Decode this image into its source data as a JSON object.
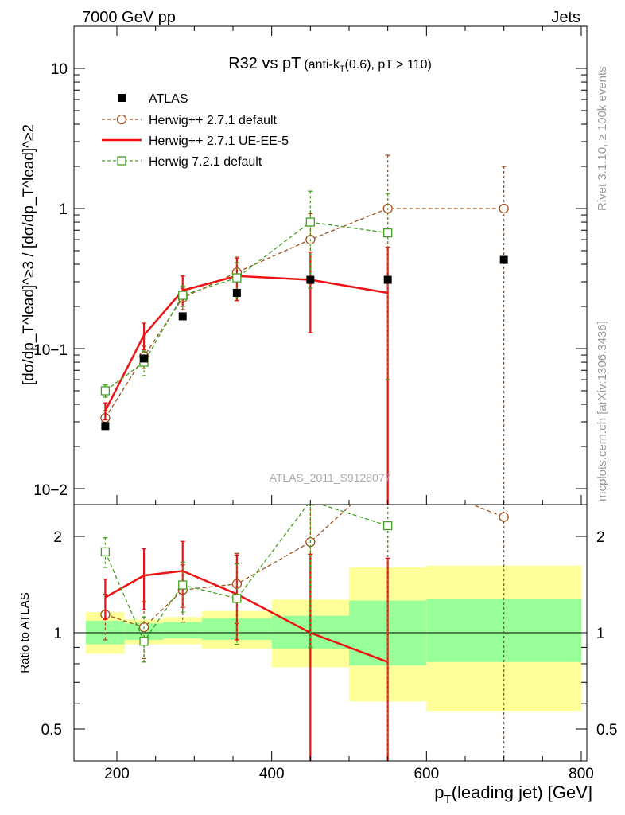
{
  "header": {
    "left": "7000 GeV pp",
    "right": "Jets"
  },
  "side_labels": {
    "rivet": "Rivet 3.1.10, ≥ 100k events",
    "mcplots": "mcplots.cern.ch [arXiv:1306.3436]"
  },
  "watermark": "ATLAS_2011_S9128077",
  "chart_data": [
    {
      "type": "line",
      "title": {
        "main": "R32 vs pT",
        "sub_a": "(anti-k",
        "sub_sub": "T",
        "sub_b": "(0.6), pT > 110)"
      },
      "ylabel": "[dσ/dp_T^lead]^≥3 / [dσ/dp_T^lead]^≥2",
      "yscale": "log",
      "xlim": [
        155,
        810
      ],
      "ylim": [
        0.0085,
        20
      ],
      "ytick_labels": [
        "10",
        "1",
        "10−1",
        "10−2"
      ],
      "legend": {
        "placement": "top-left",
        "entries": [
          "ATLAS",
          "Herwig++ 2.7.1 default",
          "Herwig++ 2.7.1 UE-EE-5",
          "Herwig 7.2.1 default"
        ]
      },
      "series": [
        {
          "name": "ATLAS",
          "style": "square",
          "color": "#000000",
          "points": [
            {
              "x": 185,
              "y": 0.028,
              "xlo": 160,
              "xhi": 210
            },
            {
              "x": 235,
              "y": 0.085,
              "xlo": 210,
              "xhi": 260
            },
            {
              "x": 285,
              "y": 0.17,
              "xlo": 260,
              "xhi": 310
            },
            {
              "x": 355,
              "y": 0.25,
              "xlo": 310,
              "xhi": 400
            },
            {
              "x": 450,
              "y": 0.31,
              "xlo": 400,
              "xhi": 500
            },
            {
              "x": 550,
              "y": 0.31,
              "xlo": 500,
              "xhi": 600
            },
            {
              "x": 700,
              "y": 0.43,
              "xlo": 600,
              "xhi": 800
            }
          ]
        },
        {
          "name": "Herwig++ 2.7.1 default",
          "style": "circle",
          "color": "#a0521e",
          "dashed": true,
          "points": [
            {
              "x": 185,
              "y": 0.032,
              "lo": 0.028,
              "hi": 0.036
            },
            {
              "x": 235,
              "y": 0.088,
              "lo": 0.072,
              "hi": 0.104
            },
            {
              "x": 285,
              "y": 0.23,
              "lo": 0.19,
              "hi": 0.27
            },
            {
              "x": 355,
              "y": 0.35,
              "lo": 0.25,
              "hi": 0.45
            },
            {
              "x": 450,
              "y": 0.6,
              "lo": 0.29,
              "hi": 0.92
            },
            {
              "x": 550,
              "y": 1.0,
              "lo": 0.001,
              "hi": 2.4
            },
            {
              "x": 700,
              "y": 1.0,
              "lo": 0.001,
              "hi": 2.0
            }
          ]
        },
        {
          "name": "Herwig++ 2.7.1 UE-EE-5",
          "style": "line",
          "color": "#ee1111",
          "points": [
            {
              "x": 185,
              "y": 0.036,
              "lo": 0.031,
              "hi": 0.041
            },
            {
              "x": 235,
              "y": 0.125,
              "lo": 0.098,
              "hi": 0.152
            },
            {
              "x": 285,
              "y": 0.26,
              "lo": 0.2,
              "hi": 0.33
            },
            {
              "x": 355,
              "y": 0.33,
              "lo": 0.22,
              "hi": 0.44
            },
            {
              "x": 450,
              "y": 0.31,
              "lo": 0.13,
              "hi": 0.49
            },
            {
              "x": 550,
              "y": 0.25,
              "lo": 0.001,
              "hi": 0.53
            }
          ]
        },
        {
          "name": "Herwig 7.2.1 default",
          "style": "open-square",
          "color": "#44a022",
          "dashed": true,
          "points": [
            {
              "x": 185,
              "y": 0.05,
              "lo": 0.045,
              "hi": 0.055
            },
            {
              "x": 235,
              "y": 0.08,
              "lo": 0.064,
              "hi": 0.096
            },
            {
              "x": 285,
              "y": 0.24,
              "lo": 0.2,
              "hi": 0.28
            },
            {
              "x": 355,
              "y": 0.32,
              "lo": 0.23,
              "hi": 0.41
            },
            {
              "x": 450,
              "y": 0.8,
              "lo": 0.27,
              "hi": 1.33
            },
            {
              "x": 550,
              "y": 0.67,
              "lo": 0.06,
              "hi": 1.28
            }
          ]
        }
      ]
    },
    {
      "type": "line",
      "ylabel": "Ratio to ATLAS",
      "yscale": "log",
      "xlim": [
        155,
        810
      ],
      "ylim": [
        0.4,
        2.5
      ],
      "xlabel": {
        "pre": "p",
        "sub": "T",
        "post": "(leading jet) [GeV]"
      },
      "xtick_labels": [
        {
          "v": 200,
          "label": "200"
        },
        {
          "v": 400,
          "label": "400"
        },
        {
          "v": 600,
          "label": "600"
        },
        {
          "v": 800,
          "label": "800"
        }
      ],
      "ytick_labels": [
        {
          "v": 2,
          "label": "2"
        },
        {
          "v": 1,
          "label": "1"
        },
        {
          "v": 0.5,
          "label": "0.5"
        }
      ],
      "bands": [
        {
          "xlo": 160,
          "xhi": 210,
          "y1lo": 0.92,
          "y1hi": 1.09,
          "y2lo": 0.86,
          "y2hi": 1.16
        },
        {
          "xlo": 210,
          "xhi": 260,
          "y1lo": 0.95,
          "y1hi": 1.07,
          "y2lo": 0.92,
          "y2hi": 1.1
        },
        {
          "xlo": 260,
          "xhi": 310,
          "y1lo": 0.96,
          "y1hi": 1.08,
          "y2lo": 0.92,
          "y2hi": 1.12
        },
        {
          "xlo": 310,
          "xhi": 400,
          "y1lo": 0.95,
          "y1hi": 1.11,
          "y2lo": 0.89,
          "y2hi": 1.17
        },
        {
          "xlo": 400,
          "xhi": 500,
          "y1lo": 0.89,
          "y1hi": 1.13,
          "y2lo": 0.78,
          "y2hi": 1.27
        },
        {
          "xlo": 500,
          "xhi": 600,
          "y1lo": 0.79,
          "y1hi": 1.26,
          "y2lo": 0.61,
          "y2hi": 1.6
        },
        {
          "xlo": 600,
          "xhi": 800,
          "y1lo": 0.81,
          "y1hi": 1.28,
          "y2lo": 0.57,
          "y2hi": 1.62
        }
      ],
      "series": [
        {
          "name": "Herwig++ 2.7.1 default",
          "color": "#a0521e",
          "dashed": true,
          "style": "circle",
          "points": [
            {
              "x": 185,
              "y": 1.14,
              "lo": 0.95,
              "hi": 1.32
            },
            {
              "x": 235,
              "y": 1.04,
              "lo": 0.83,
              "hi": 1.25
            },
            {
              "x": 285,
              "y": 1.36,
              "lo": 1.08,
              "hi": 1.63
            },
            {
              "x": 355,
              "y": 1.42,
              "lo": 1.07,
              "hi": 1.77
            },
            {
              "x": 450,
              "y": 1.92,
              "lo": 0.37,
              "hi": 3.0
            },
            {
              "x": 550,
              "y": 3.2,
              "lo": 0.3,
              "hi": 4.0
            },
            {
              "x": 700,
              "y": 2.3,
              "lo": 0.3,
              "hi": 4.0
            }
          ]
        },
        {
          "name": "Herwig++ 2.7.1 UE-EE-5",
          "color": "#ee1111",
          "style": "line",
          "points": [
            {
              "x": 185,
              "y": 1.29,
              "lo": 1.1,
              "hi": 1.47
            },
            {
              "x": 235,
              "y": 1.51,
              "lo": 1.18,
              "hi": 1.83
            },
            {
              "x": 285,
              "y": 1.56,
              "lo": 1.2,
              "hi": 1.93
            },
            {
              "x": 355,
              "y": 1.32,
              "lo": 0.95,
              "hi": 1.75
            },
            {
              "x": 450,
              "y": 1.0,
              "lo": 0.37,
              "hi": 1.76
            },
            {
              "x": 550,
              "y": 0.81,
              "lo": 0.3,
              "hi": 1.71
            }
          ]
        },
        {
          "name": "Herwig 7.2.1 default",
          "color": "#44a022",
          "dashed": true,
          "style": "open-square",
          "points": [
            {
              "x": 185,
              "y": 1.79,
              "lo": 1.6,
              "hi": 1.98
            },
            {
              "x": 235,
              "y": 0.94,
              "lo": 0.81,
              "hi": 1.12
            },
            {
              "x": 285,
              "y": 1.41,
              "lo": 1.16,
              "hi": 1.66
            },
            {
              "x": 355,
              "y": 1.28,
              "lo": 0.92,
              "hi": 1.64
            },
            {
              "x": 450,
              "y": 2.58,
              "lo": 0.9,
              "hi": 4.0
            },
            {
              "x": 550,
              "y": 2.16,
              "lo": 0.3,
              "hi": 4.0
            }
          ]
        }
      ]
    }
  ]
}
